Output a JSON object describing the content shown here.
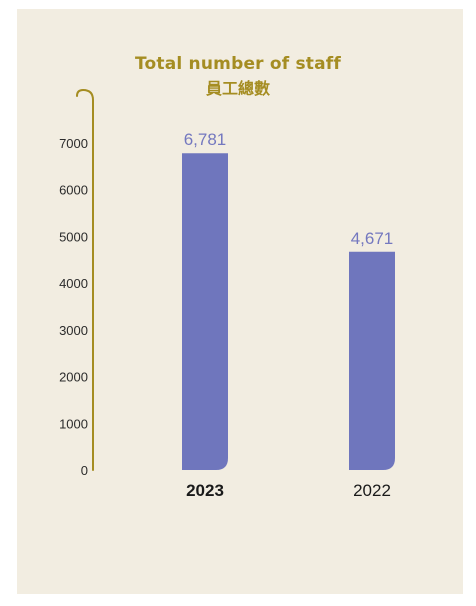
{
  "chart_data": {
    "type": "bar",
    "title": "Total number of staff",
    "subtitle": "員工總數",
    "categories": [
      "2023",
      "2022"
    ],
    "values": [
      6781,
      4671
    ],
    "data_labels": [
      "6,781",
      "4,671"
    ],
    "category_bold": [
      true,
      false
    ],
    "y_ticks": [
      "0",
      "1000",
      "2000",
      "3000",
      "4000",
      "5000",
      "6000",
      "7000"
    ],
    "ylim": [
      0,
      7000
    ],
    "grid": false,
    "legend": "none"
  },
  "colors": {
    "background": "#f2ede1",
    "bar": "#6f76bd",
    "axis": "#a58d22",
    "title": "#a58d22"
  }
}
